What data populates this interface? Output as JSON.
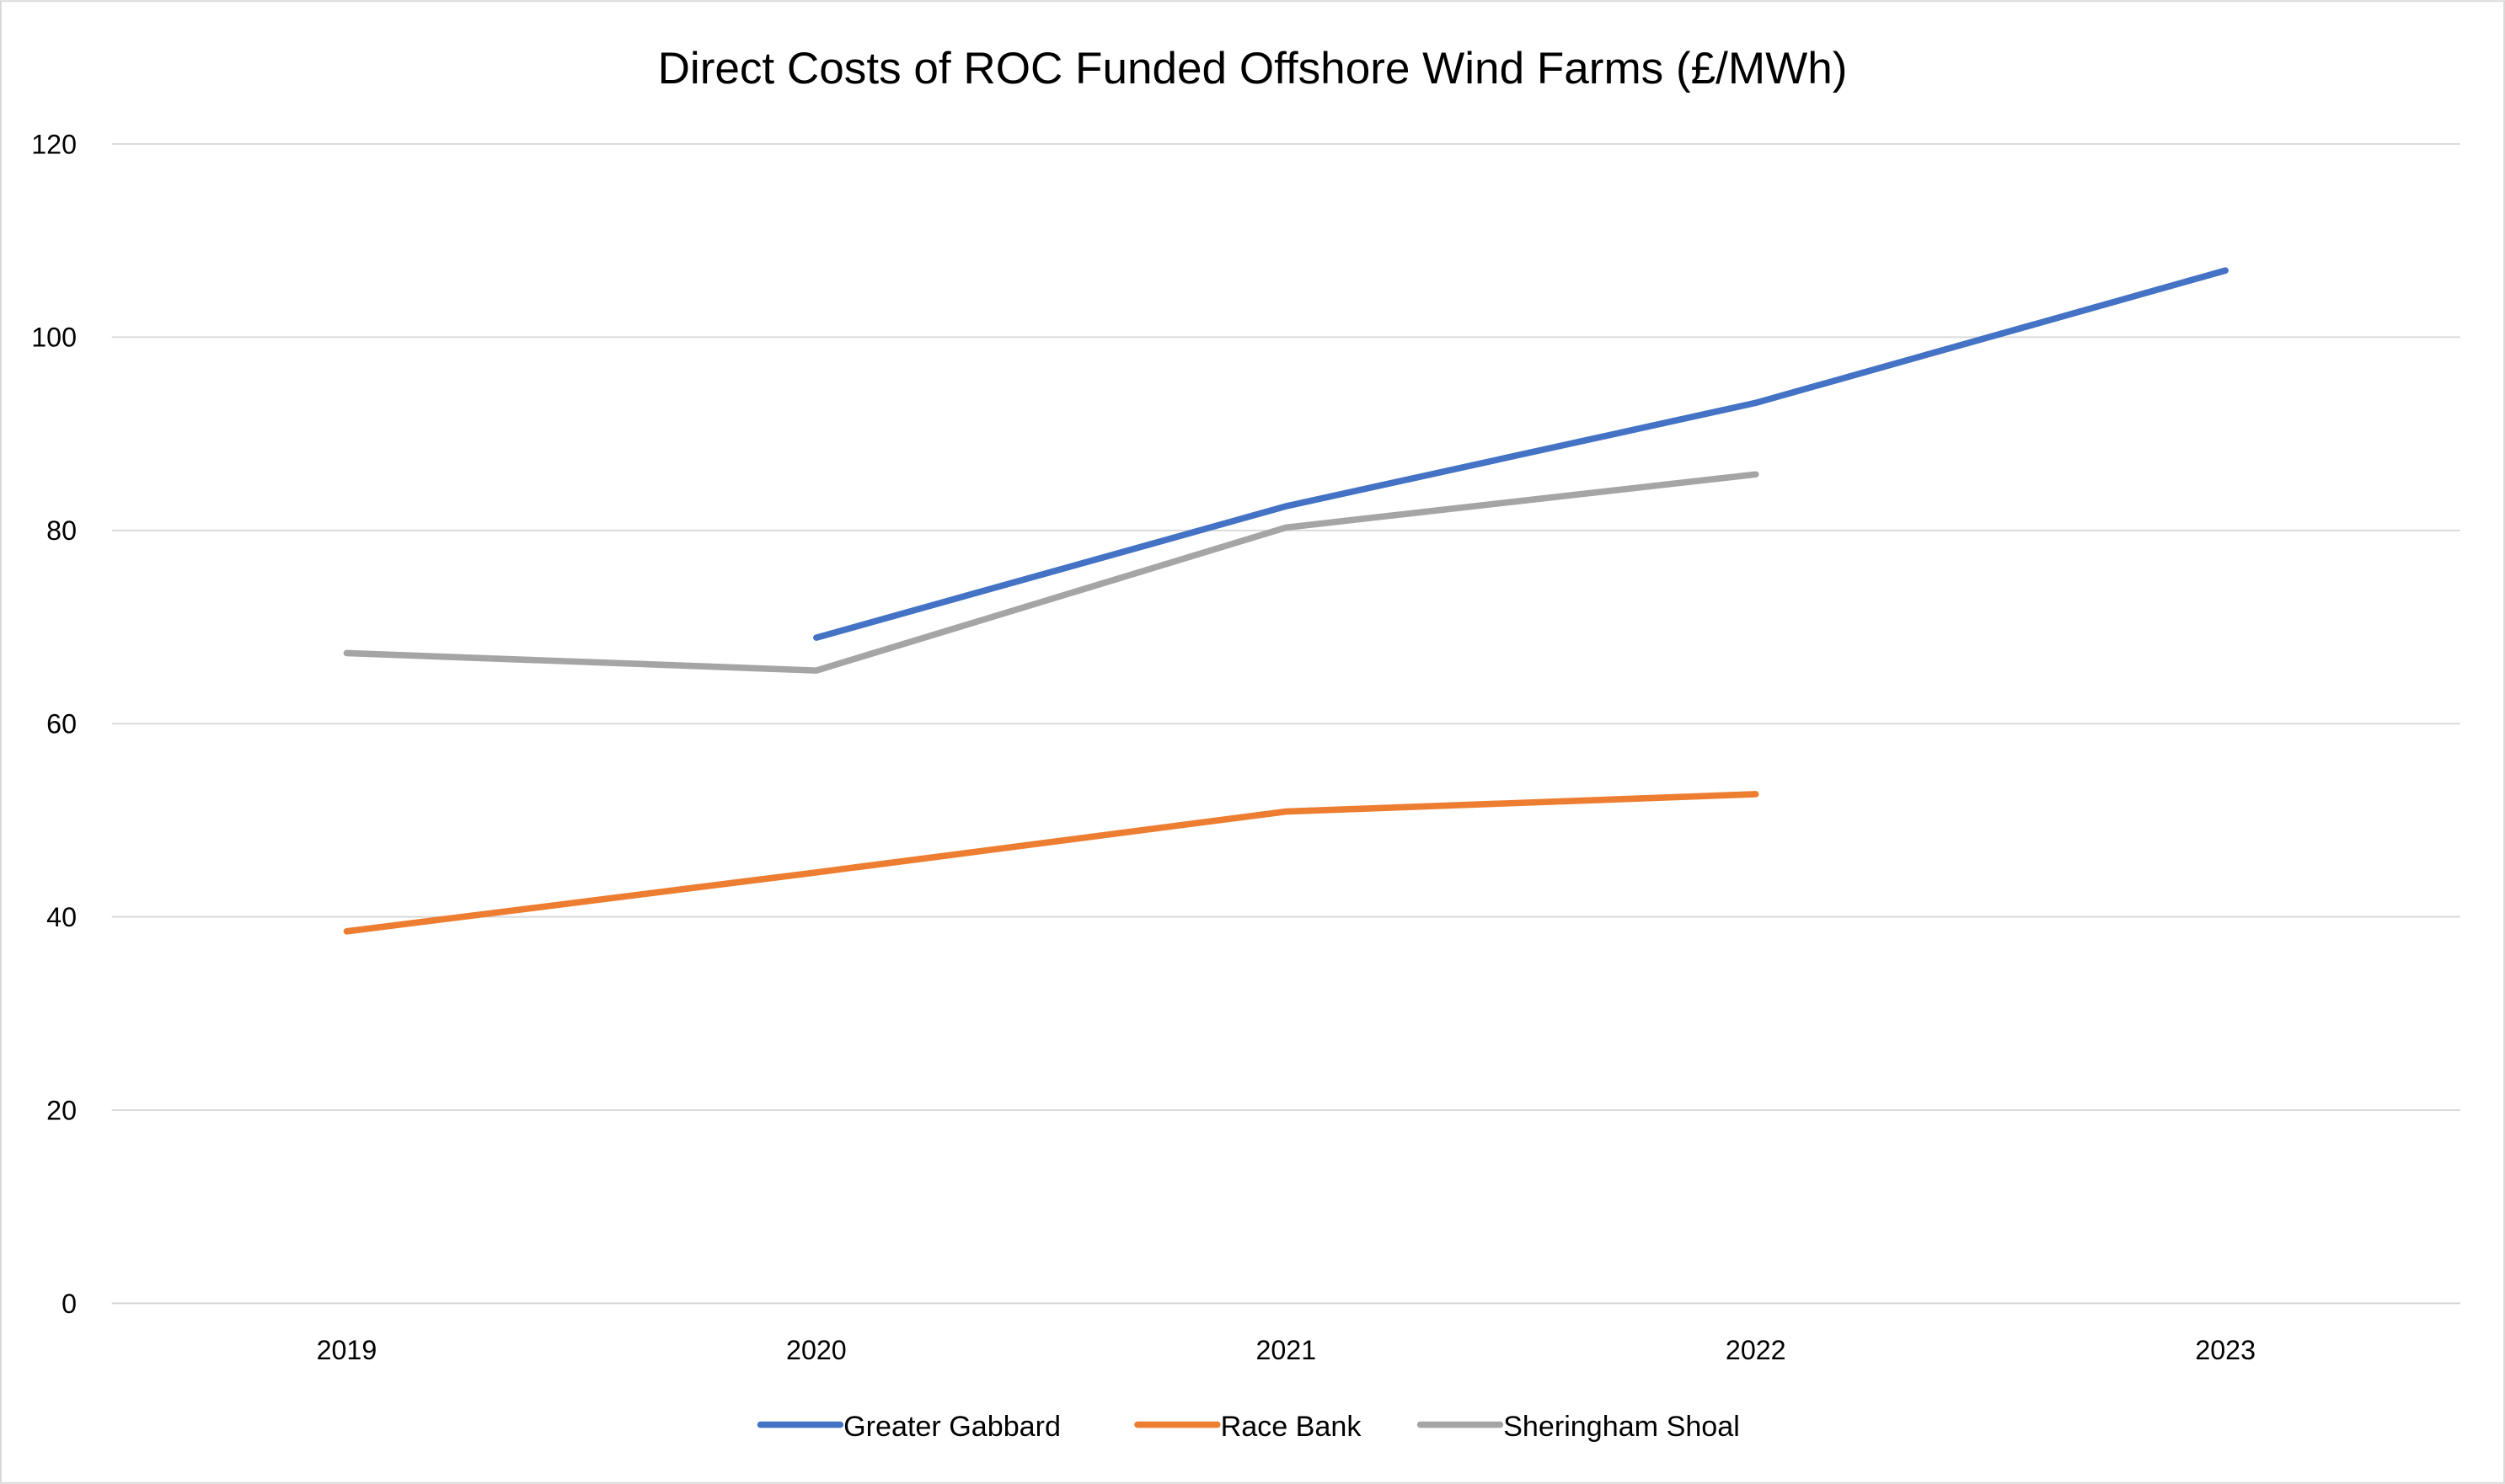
{
  "chart_data": {
    "type": "line",
    "title": "Direct Costs of ROC Funded Offshore Wind Farms (£/MWh)",
    "xlabel": "",
    "ylabel": "",
    "categories": [
      "2019",
      "2020",
      "2021",
      "2022",
      "2023"
    ],
    "ylim": [
      0,
      120
    ],
    "yticks": [
      "0",
      "20",
      "40",
      "60",
      "80",
      "100",
      "120"
    ],
    "grid": true,
    "legend_position": "bottom",
    "series": [
      {
        "name": "Greater Gabbard",
        "color": "#4472C4",
        "values": [
          null,
          68.9,
          82.5,
          93.2,
          106.9
        ]
      },
      {
        "name": "Race Bank",
        "color": "#ED7D31",
        "values": [
          38.5,
          44.6,
          50.9,
          52.7,
          null
        ]
      },
      {
        "name": "Sheringham Shoal",
        "color": "#A5A5A5",
        "values": [
          67.3,
          65.5,
          80.3,
          85.8,
          null
        ]
      }
    ]
  }
}
